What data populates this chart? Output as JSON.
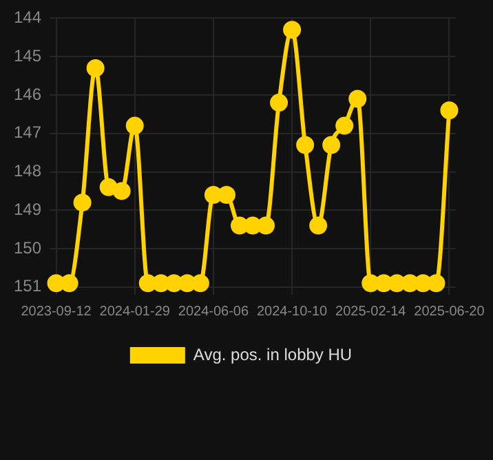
{
  "chart_data": {
    "type": "line",
    "categories": [
      "2023-09-12",
      null,
      null,
      null,
      null,
      null,
      "2024-01-29",
      null,
      null,
      null,
      null,
      null,
      "2024-06-06",
      null,
      null,
      null,
      null,
      null,
      "2024-10-10",
      null,
      null,
      null,
      null,
      null,
      "2025-02-14",
      null,
      null,
      null,
      null,
      null,
      "2025-06-20"
    ],
    "series": [
      {
        "name": "Avg. pos. in lobby HU",
        "color": "#ffd200",
        "values": [
          150.9,
          150.9,
          148.8,
          145.3,
          148.4,
          148.5,
          146.8,
          150.9,
          150.9,
          150.9,
          150.9,
          150.9,
          148.6,
          148.6,
          149.4,
          149.4,
          149.4,
          146.2,
          144.3,
          147.3,
          149.4,
          147.3,
          146.8,
          146.1,
          150.9,
          150.9,
          150.9,
          150.9,
          150.9,
          150.9,
          146.4
        ]
      }
    ],
    "ylim": [
      151.2,
      144
    ],
    "yticks": [
      144,
      145,
      146,
      147,
      148,
      149,
      150,
      151
    ],
    "grid": true,
    "legend": "bottom",
    "marker": "circle",
    "line_style": "solid"
  }
}
